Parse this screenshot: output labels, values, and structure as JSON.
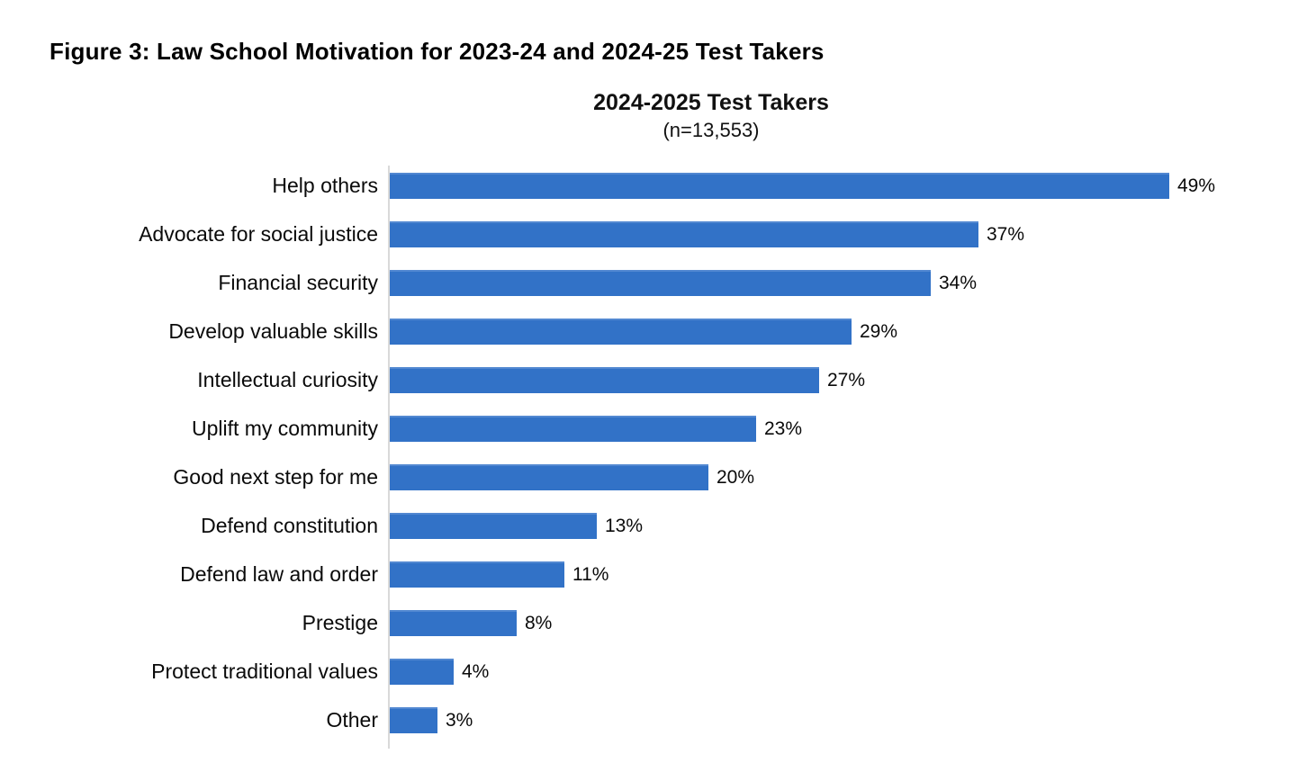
{
  "figure": {
    "title": "Figure 3: Law School Motivation for 2023-24 and 2024-25 Test Takers"
  },
  "chart": {
    "title": "2024-2025 Test Takers",
    "subtitle": "(n=13,553)"
  },
  "chart_data": {
    "type": "bar",
    "orientation": "horizontal",
    "title": "2024-2025 Test Takers",
    "subtitle": "(n=13,553)",
    "categories": [
      "Help others",
      "Advocate for social justice",
      "Financial security",
      "Develop valuable skills",
      "Intellectual curiosity",
      "Uplift my community",
      "Good next step for me",
      "Defend constitution",
      "Defend law and order",
      "Prestige",
      "Protect traditional values",
      "Other"
    ],
    "values": [
      49,
      37,
      34,
      29,
      27,
      23,
      20,
      13,
      11,
      8,
      4,
      3
    ],
    "value_labels": [
      "49%",
      "37%",
      "34%",
      "29%",
      "27%",
      "23%",
      "20%",
      "13%",
      "11%",
      "8%",
      "4%",
      "3%"
    ],
    "value_suffix": "%",
    "xlim": [
      0,
      56
    ],
    "grid": false,
    "legend": "none",
    "data_label_position": "outside-end",
    "colors": {
      "bar": "#3272c7",
      "axis_line": "#d9d9d9",
      "text": "#000000"
    }
  }
}
